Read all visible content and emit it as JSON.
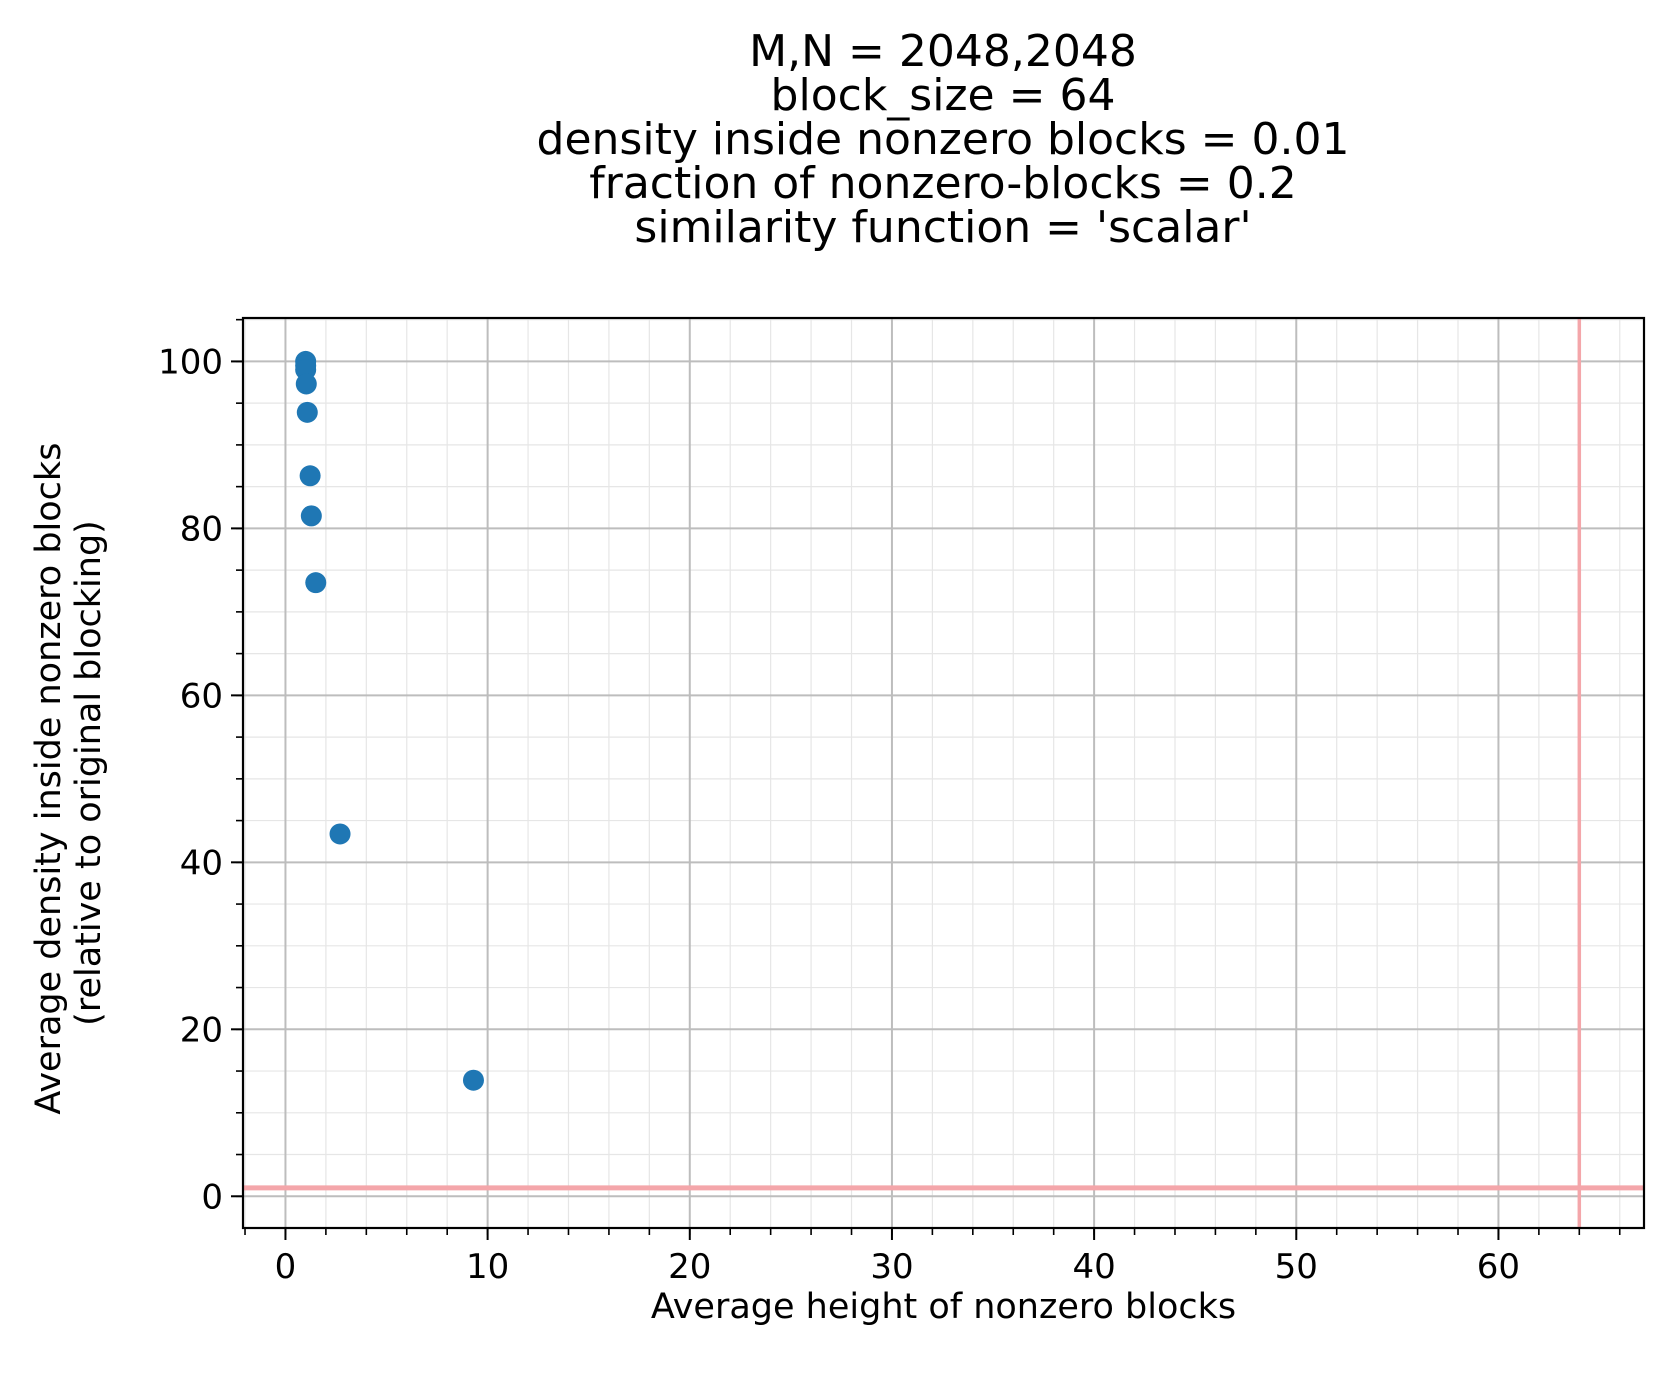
{
  "chart_data": {
    "type": "scatter",
    "title_lines": [
      "M,N = 2048,2048",
      "block_size = 64",
      "density inside nonzero blocks = 0.01",
      "fraction of nonzero-blocks = 0.2",
      "similarity function = 'scalar'"
    ],
    "xlabel": "Average height of nonzero blocks",
    "ylabel_lines": [
      "Average density inside nonzero blocks",
      "(relative to original blocking)"
    ],
    "xlim": [
      -2.1,
      67.2
    ],
    "ylim": [
      -3.8,
      105.2
    ],
    "x_major_ticks": [
      0,
      10,
      20,
      30,
      40,
      50,
      60
    ],
    "y_major_ticks": [
      0,
      20,
      40,
      60,
      80,
      100
    ],
    "x_tick_labels": [
      "0",
      "10",
      "20",
      "30",
      "40",
      "50",
      "60"
    ],
    "y_tick_labels": [
      "0",
      "20",
      "40",
      "60",
      "80",
      "100"
    ],
    "x_minor_step": 2,
    "y_minor_step": 5,
    "grid": {
      "major": true,
      "minor": true
    },
    "reference_lines": [
      {
        "orientation": "vertical",
        "value": 64,
        "color": "#f4a6aa"
      },
      {
        "orientation": "horizontal",
        "value": 1,
        "color": "#f4a6aa"
      }
    ],
    "series": [
      {
        "color": "#1f77b4",
        "points": [
          {
            "x": 1.0,
            "y": 100.0
          },
          {
            "x": 1.0,
            "y": 99.5
          },
          {
            "x": 1.0,
            "y": 99.0
          },
          {
            "x": 1.03,
            "y": 97.3
          },
          {
            "x": 1.08,
            "y": 93.9
          },
          {
            "x": 1.22,
            "y": 86.3
          },
          {
            "x": 1.28,
            "y": 81.5
          },
          {
            "x": 1.5,
            "y": 73.5
          },
          {
            "x": 2.7,
            "y": 43.4
          },
          {
            "x": 9.3,
            "y": 13.9
          }
        ]
      }
    ]
  }
}
